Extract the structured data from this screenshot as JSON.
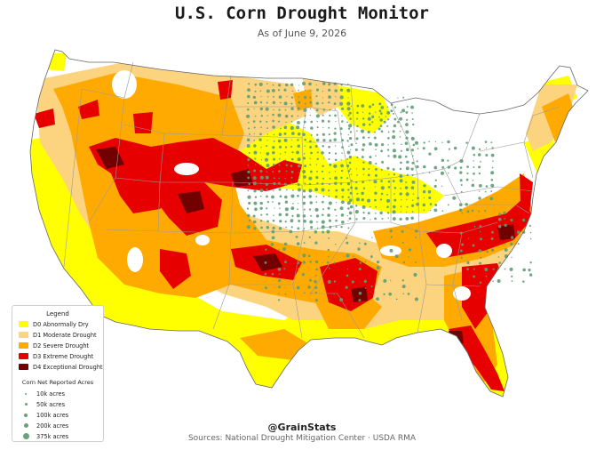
{
  "header": {
    "title": "U.S. Corn Drought Monitor",
    "subtitle": "As of June 9, 2026"
  },
  "colors": {
    "D0": "#ffff00",
    "D1": "#fcd37f",
    "D2": "#ffaa00",
    "D3": "#e60000",
    "D4": "#730000",
    "acres_dot": "#5f9e75",
    "state_border": "#9a9a9a"
  },
  "legend": {
    "title": "Legend",
    "drought_items": [
      {
        "label": "D0 Abnormally Dry",
        "color": "#ffff00"
      },
      {
        "label": "D1 Moderate Drought",
        "color": "#fcd37f"
      },
      {
        "label": "D2 Severe Drought",
        "color": "#ffaa00"
      },
      {
        "label": "D3 Extreme Drought",
        "color": "#e60000"
      },
      {
        "label": "D4 Exceptional Drought",
        "color": "#730000"
      }
    ],
    "acres_title": "Corn Net Reported Acres",
    "acres_items": [
      {
        "label": "10k acres",
        "acres": 10000
      },
      {
        "label": "50k acres",
        "acres": 50000
      },
      {
        "label": "100k acres",
        "acres": 100000
      },
      {
        "label": "200k acres",
        "acres": 200000
      },
      {
        "label": "375k acres",
        "acres": 375000
      }
    ]
  },
  "footer": {
    "handle": "@GrainStats",
    "sources": "Sources: National Drought Mitigation Center  ·  USDA RMA"
  }
}
